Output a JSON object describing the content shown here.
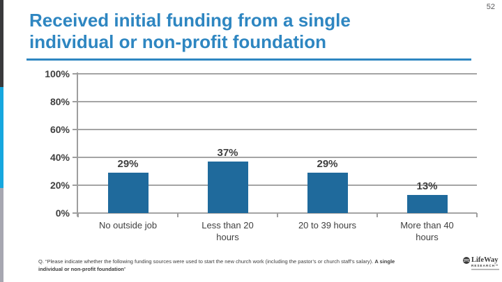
{
  "slide": {
    "page_number": "52",
    "title_line1": "Received initial funding from a single",
    "title_line2": "individual or non-profit foundation",
    "accent_color": "#2E86C1"
  },
  "chart_data": {
    "type": "bar",
    "title": "Received initial funding from a single individual or non-profit foundation",
    "categories": [
      "No outside job",
      "Less than 20\nhours",
      "20 to 39 hours",
      "More than 40\nhours"
    ],
    "values": [
      29,
      37,
      29,
      13
    ],
    "value_labels": [
      "29%",
      "37%",
      "29%",
      "13%"
    ],
    "xlabel": "",
    "ylabel": "",
    "ylim": [
      0,
      100
    ],
    "ytick_step": 20,
    "ytick_labels": [
      "100%",
      "80%",
      "60%",
      "40%",
      "20%",
      "0%"
    ],
    "grid": true,
    "legend": "none",
    "bar_color": "#1F6A9C"
  },
  "footnote": {
    "q_prefix": "Q. “Please indicate whether the following funding sources were used to start the new church work (including the pastor’s or church staff’s salary). ",
    "bold_text": "A single individual or non-profit foundation",
    "close_quote": "”"
  },
  "logo": {
    "brand": "LifeWay",
    "division": "RESEARCH™"
  }
}
